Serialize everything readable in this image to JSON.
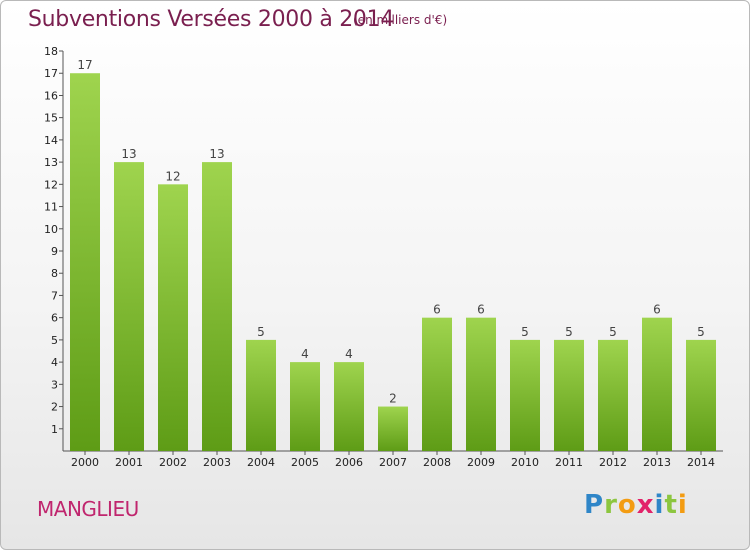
{
  "header": {
    "title": "Subventions Versées 2000 à 2014",
    "subtitle": "(en milliers d'€)"
  },
  "footer": {
    "commune": "MANGLIEU",
    "logo_text": "Proxiti"
  },
  "colors": {
    "bar_top": "#9fd44e",
    "bar_bottom": "#5e9c16",
    "title": "#7a1f4f",
    "commune": "#c0266e"
  },
  "chart_data": {
    "type": "bar",
    "title": "Subventions Versées 2000 à 2014",
    "categories": [
      "2000",
      "2001",
      "2002",
      "2003",
      "2004",
      "2005",
      "2006",
      "2007",
      "2008",
      "2009",
      "2010",
      "2011",
      "2012",
      "2013",
      "2014"
    ],
    "values": [
      17,
      13,
      12,
      13,
      5,
      4,
      4,
      2,
      6,
      6,
      5,
      5,
      5,
      6,
      5
    ],
    "ylim": [
      0,
      18
    ],
    "yticks": [
      1,
      2,
      3,
      4,
      5,
      6,
      7,
      8,
      9,
      10,
      11,
      12,
      13,
      14,
      15,
      16,
      17,
      18
    ],
    "xlabel": "",
    "ylabel": "",
    "grid": false,
    "legend": "none"
  }
}
